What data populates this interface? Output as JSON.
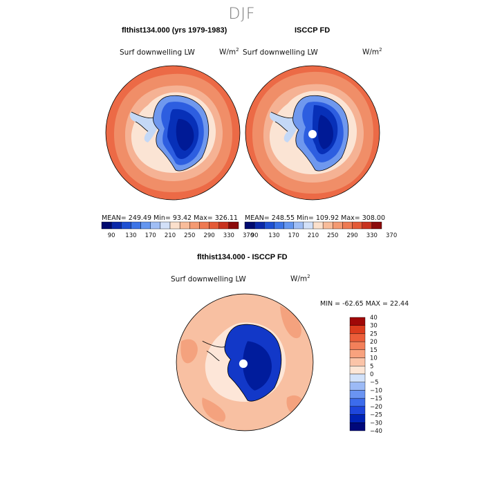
{
  "season": "DJF",
  "panels": [
    {
      "title": "flthist134.000 (yrs 1979-1983)",
      "variable": "Surf downwelling LW",
      "units_base": "W/m",
      "units_exp": "2",
      "stats": "MEAN= 249.49   Min=  93.42   Max= 326.11"
    },
    {
      "title": "ISCCP FD",
      "variable": "Surf downwelling LW",
      "units_base": "W/m",
      "units_exp": "2",
      "stats": "MEAN= 248.55   Min= 109.92   Max= 308.00"
    },
    {
      "title": "flthist134.000 - ISCCP FD",
      "variable": "Surf downwelling LW",
      "units_base": "W/m",
      "units_exp": "2",
      "stats": "MIN = -62.65  MAX =  22.44"
    }
  ],
  "colorbar_abs": {
    "colors": [
      "#000a6e",
      "#0a28a8",
      "#1e50d2",
      "#3c74e6",
      "#6496f0",
      "#a0bef5",
      "#d2e0f8",
      "#fbe0cc",
      "#f8bc9a",
      "#f49a72",
      "#ee7a52",
      "#e45a36",
      "#c8321e",
      "#8c0a0a"
    ],
    "ticks": [
      "90",
      "130",
      "170",
      "210",
      "250",
      "290",
      "330",
      "370"
    ]
  },
  "colorbar_diff": {
    "colors": [
      "#00087a",
      "#0022b4",
      "#1e46dc",
      "#3c6cec",
      "#6a94f2",
      "#9cbaf6",
      "#d2e2fa",
      "#fde6d6",
      "#fbc4a8",
      "#f8a27e",
      "#f3805a",
      "#ec5e3a",
      "#dc3c1e",
      "#a00808"
    ],
    "labels": [
      "40",
      "30",
      "25",
      "20",
      "15",
      "10",
      "5",
      "0",
      "−5",
      "−10",
      "−15",
      "−20",
      "−25",
      "−30",
      "−40"
    ]
  },
  "map_colors": {
    "ocean_outer": "#ec6a46",
    "ocean_mid": "#f08e68",
    "ocean_inner": "#f5b294",
    "sea_ice": "#fbe4d4",
    "coast_pale": "#c4d8f6",
    "ant_edge": "#6f98ee",
    "ant_mid": "#2d5ee0",
    "ant_core": "#0730b8",
    "ant_deep": "#001a96",
    "diff_ocean": "#f8c0a2",
    "diff_ocean2": "#f4a27e",
    "diff_pale": "#fde6d8",
    "diff_ant": "#1238c8",
    "diff_ant_deep": "#001c9c"
  }
}
